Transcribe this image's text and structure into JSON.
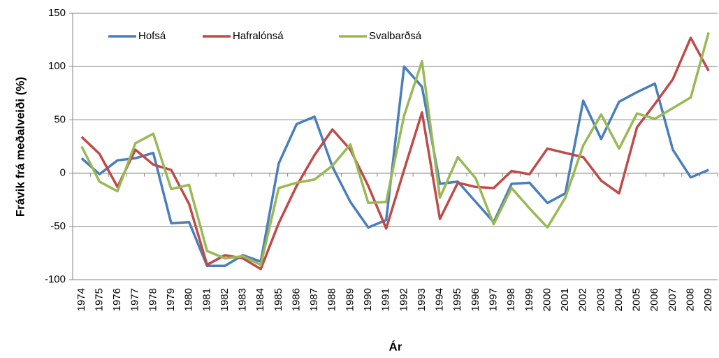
{
  "chart_data": {
    "type": "line",
    "x_label": "Ár",
    "y_label": "Frávik frá meðalveiði (%)",
    "categories": [
      "1974",
      "1975",
      "1976",
      "1977",
      "1978",
      "1979",
      "1980",
      "1981",
      "1982",
      "1983",
      "1984",
      "1985",
      "1986",
      "1987",
      "1988",
      "1989",
      "1990",
      "1991",
      "1992",
      "1993",
      "1994",
      "1995",
      "1996",
      "1997",
      "1998",
      "1999",
      "2000",
      "2001",
      "2002",
      "2003",
      "2004",
      "2005",
      "2006",
      "2007",
      "2008",
      "2009"
    ],
    "series": [
      {
        "name": "Hofsá",
        "color": "#4a7ebb",
        "values": [
          14,
          -1,
          12,
          14,
          19,
          -47,
          -46,
          -87,
          -87,
          -77,
          -83,
          9,
          46,
          53,
          6,
          -27,
          -51,
          -44,
          100,
          81,
          -10,
          -8,
          -27,
          -46,
          -10,
          -9,
          -28,
          -19,
          68,
          32,
          67,
          76,
          84,
          22,
          -4,
          3
        ]
      },
      {
        "name": "Hafralónsá",
        "color": "#be4b48",
        "values": [
          34,
          18,
          -13,
          22,
          8,
          3,
          -29,
          -86,
          -77,
          -80,
          -90,
          -47,
          -12,
          17,
          41,
          22,
          -12,
          -52,
          3,
          57,
          -43,
          -9,
          -13,
          -14,
          2,
          -1,
          23,
          19,
          15,
          -7,
          -19,
          43,
          65,
          88,
          127,
          96
        ]
      },
      {
        "name": "Svalbarðsá",
        "color": "#98b954",
        "values": [
          25,
          -8,
          -17,
          28,
          37,
          -15,
          -11,
          -73,
          -80,
          -78,
          -86,
          -14,
          -9,
          -6,
          7,
          27,
          -28,
          -27,
          54,
          105,
          -23,
          15,
          -5,
          -48,
          -14,
          -33,
          -51,
          -23,
          26,
          55,
          23,
          56,
          51,
          61,
          71,
          132
        ]
      }
    ],
    "ylim": [
      -100,
      150
    ],
    "yticks": [
      -100,
      -50,
      0,
      50,
      100,
      150
    ],
    "grid": true,
    "legend": "top-left"
  }
}
